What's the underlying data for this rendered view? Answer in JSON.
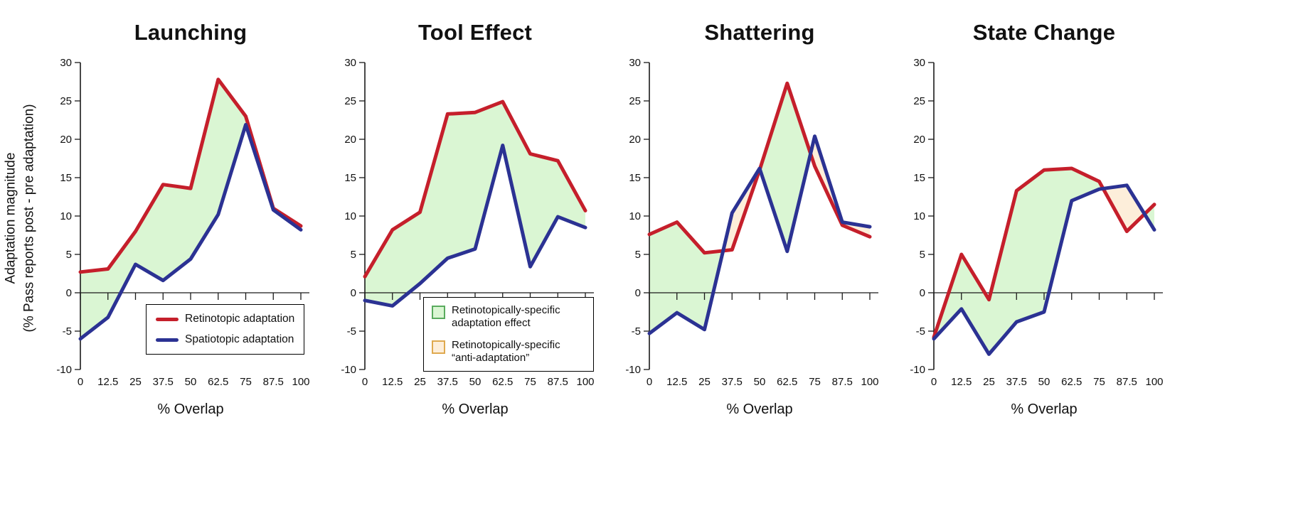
{
  "figure": {
    "ylabel_line1": "Adaptation magnitude",
    "ylabel_line2": "(% Pass reports post - pre adaptation)",
    "xlabel": "% Overlap"
  },
  "axes": {
    "xlim": [
      0,
      100
    ],
    "ylim": [
      -10,
      30
    ],
    "xticks": [
      0,
      12.5,
      25,
      37.5,
      50,
      62.5,
      75,
      87.5,
      100
    ],
    "xtick_labels": [
      "0",
      "12.5",
      "25",
      "37.5",
      "50",
      "62.5",
      "75",
      "87.5",
      "100"
    ],
    "yticks": [
      30,
      25,
      20,
      15,
      10,
      5,
      0,
      -5,
      -10
    ],
    "ytick_labels": [
      "30",
      "25",
      "20",
      "15",
      "10",
      "5",
      "0",
      "-5",
      "-10"
    ],
    "grid": false
  },
  "colors": {
    "retinotopic_line": "#c51f2b",
    "spatiotopic_line": "#2b3293",
    "adaptation_fill": "#daf6d3",
    "anti_adaptation_fill": "#fdeeda",
    "adaptation_swatch_border": "#5aab5e",
    "anti_adaptation_swatch_border": "#dfa94f",
    "axis": "#1a1a1a"
  },
  "legends": {
    "lines": {
      "items": [
        {
          "label": "Retinotopic adaptation",
          "color_key": "retinotopic_line"
        },
        {
          "label": "Spatiotopic adaptation",
          "color_key": "spatiotopic_line"
        }
      ]
    },
    "fills": {
      "items": [
        {
          "label": "Retinotopically-specific adaptation effect",
          "fill_key": "adaptation_fill",
          "border_key": "adaptation_swatch_border"
        },
        {
          "label": "Retinotopically-specific “anti-adaptation”",
          "fill_key": "anti_adaptation_fill",
          "border_key": "anti_adaptation_swatch_border"
        }
      ]
    }
  },
  "chart_data": [
    {
      "type": "line",
      "title": "Launching",
      "xlabel": "% Overlap",
      "x": [
        0,
        12.5,
        25,
        37.5,
        50,
        62.5,
        75,
        87.5,
        100
      ],
      "xlim": [
        0,
        100
      ],
      "ylim": [
        -10,
        30
      ],
      "series": [
        {
          "name": "Retinotopic adaptation",
          "color": "#c51f2b",
          "values": [
            2.7,
            3.1,
            8.0,
            14.1,
            13.6,
            27.8,
            23.0,
            11.0,
            8.7
          ]
        },
        {
          "name": "Spatiotopic adaptation",
          "color": "#2b3293",
          "values": [
            -6.0,
            -3.2,
            3.7,
            1.6,
            4.4,
            10.2,
            21.9,
            10.8,
            8.2
          ]
        }
      ],
      "shading_rule": "green where retinotopic > spatiotopic, peach where spatiotopic > retinotopic"
    },
    {
      "type": "line",
      "title": "Tool Effect",
      "xlabel": "% Overlap",
      "x": [
        0,
        12.5,
        25,
        37.5,
        50,
        62.5,
        75,
        87.5,
        100
      ],
      "xlim": [
        0,
        100
      ],
      "ylim": [
        -10,
        30
      ],
      "series": [
        {
          "name": "Retinotopic adaptation",
          "color": "#c51f2b",
          "values": [
            2.1,
            8.2,
            10.5,
            23.3,
            23.5,
            24.9,
            18.1,
            17.2,
            10.7
          ]
        },
        {
          "name": "Spatiotopic adaptation",
          "color": "#2b3293",
          "values": [
            -1.0,
            -1.7,
            1.2,
            4.5,
            5.7,
            19.2,
            3.4,
            9.9,
            8.5
          ]
        }
      ],
      "shading_rule": "green where retinotopic > spatiotopic, peach where spatiotopic > retinotopic"
    },
    {
      "type": "line",
      "title": "Shattering",
      "xlabel": "% Overlap",
      "x": [
        0,
        12.5,
        25,
        37.5,
        50,
        62.5,
        75,
        87.5,
        100
      ],
      "xlim": [
        0,
        100
      ],
      "ylim": [
        -10,
        30
      ],
      "series": [
        {
          "name": "Retinotopic adaptation",
          "color": "#c51f2b",
          "values": [
            7.6,
            9.2,
            5.2,
            5.6,
            16.0,
            27.3,
            16.5,
            8.8,
            7.3
          ]
        },
        {
          "name": "Spatiotopic adaptation",
          "color": "#2b3293",
          "values": [
            -5.3,
            -2.6,
            -4.8,
            10.4,
            16.2,
            5.4,
            20.4,
            9.2,
            8.6
          ]
        }
      ],
      "shading_rule": "green where retinotopic > spatiotopic, peach where spatiotopic > retinotopic"
    },
    {
      "type": "line",
      "title": "State Change",
      "xlabel": "% Overlap",
      "x": [
        0,
        12.5,
        25,
        37.5,
        50,
        62.5,
        75,
        87.5,
        100
      ],
      "xlim": [
        0,
        100
      ],
      "ylim": [
        -10,
        30
      ],
      "series": [
        {
          "name": "Retinotopic adaptation",
          "color": "#c51f2b",
          "values": [
            -5.8,
            5.0,
            -0.9,
            13.3,
            16.0,
            16.2,
            14.5,
            8.0,
            11.5
          ]
        },
        {
          "name": "Spatiotopic adaptation",
          "color": "#2b3293",
          "values": [
            -6.0,
            -2.1,
            -8.0,
            -3.8,
            -2.5,
            12.0,
            13.5,
            14.0,
            8.2
          ]
        }
      ],
      "shading_rule": "green where retinotopic > spatiotopic, peach where spatiotopic > retinotopic"
    }
  ]
}
